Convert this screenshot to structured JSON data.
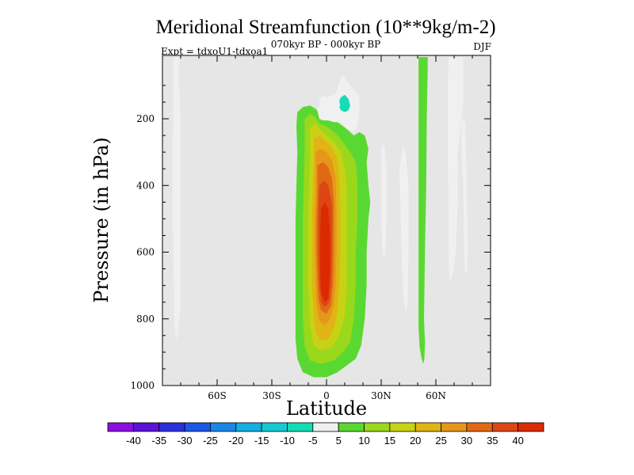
{
  "chart_data": {
    "type": "filled-contour",
    "title": "Meridional Streamfunction (10**9kg/m-2)",
    "subtitle": "070kyr BP - 000kyr BP",
    "left_label": "Expt = tdxoU1-tdxoa1",
    "right_label": "DJF",
    "xlabel": "Latitude",
    "ylabel": "Pressure (in hPa)",
    "xlim": [
      -90,
      90
    ],
    "ylim": [
      1000,
      10
    ],
    "x_ticks": [
      {
        "value": -60,
        "label": "60S"
      },
      {
        "value": -30,
        "label": "30S"
      },
      {
        "value": 0,
        "label": "0"
      },
      {
        "value": 30,
        "label": "30N"
      },
      {
        "value": 60,
        "label": "60N"
      }
    ],
    "y_ticks": [
      {
        "value": 200,
        "label": "200"
      },
      {
        "value": 400,
        "label": "400"
      },
      {
        "value": 600,
        "label": "600"
      },
      {
        "value": 800,
        "label": "800"
      },
      {
        "value": 1000,
        "label": "1000"
      }
    ],
    "background_color": "#e6e6e6",
    "colorbar": {
      "labels": [
        "-40",
        "-35",
        "-30",
        "-25",
        "-20",
        "-15",
        "-10",
        "-5",
        "5",
        "10",
        "15",
        "20",
        "25",
        "30",
        "35",
        "40"
      ],
      "colors": [
        "#8a10e0",
        "#5a14d8",
        "#2c30d8",
        "#1a58e6",
        "#1a86e6",
        "#14aee0",
        "#14cad2",
        "#14dcb4",
        "#f0f0f0",
        "#5ad832",
        "#9ad81c",
        "#c8d214",
        "#e0b414",
        "#e6961a",
        "#e06a14",
        "#dc4614",
        "#dc2a00"
      ]
    },
    "regions": [
      {
        "name": "sh-polar-cell",
        "level": -5,
        "points": [
          [
            -84,
            15
          ],
          [
            -81,
            15
          ],
          [
            -81,
            85
          ],
          [
            -80,
            200
          ],
          [
            -80,
            400
          ],
          [
            -80,
            600
          ],
          [
            -80,
            700
          ],
          [
            -80,
            760
          ],
          [
            -81,
            810
          ],
          [
            -81.5,
            850
          ],
          [
            -82.5,
            860
          ],
          [
            -83.5,
            820
          ],
          [
            -83.8,
            700
          ],
          [
            -84,
            600
          ],
          [
            -84.5,
            500
          ],
          [
            -84.5,
            300
          ],
          [
            -84,
            150
          ]
        ]
      },
      {
        "name": "tropical-cell-lv1",
        "level": 5,
        "points": [
          [
            -16,
            180
          ],
          [
            -13,
            165
          ],
          [
            -9,
            160
          ],
          [
            -6,
            170
          ],
          [
            -3,
            190
          ],
          [
            0,
            180
          ],
          [
            5,
            175
          ],
          [
            7,
            200
          ],
          [
            6,
            210
          ],
          [
            11,
            230
          ],
          [
            15,
            250
          ],
          [
            18,
            240
          ],
          [
            21,
            250
          ],
          [
            23,
            290
          ],
          [
            22,
            330
          ],
          [
            23,
            400
          ],
          [
            24,
            450
          ],
          [
            23,
            500
          ],
          [
            22,
            600
          ],
          [
            22,
            700
          ],
          [
            21,
            800
          ],
          [
            19,
            880
          ],
          [
            16,
            920
          ],
          [
            11,
            940
          ],
          [
            6,
            960
          ],
          [
            0,
            975
          ],
          [
            -7,
            975
          ],
          [
            -13,
            960
          ],
          [
            -16,
            920
          ],
          [
            -17,
            860
          ],
          [
            -17,
            750
          ],
          [
            -17,
            600
          ],
          [
            -17,
            500
          ],
          [
            -16.5,
            400
          ],
          [
            -16,
            300
          ],
          [
            -16.5,
            220
          ]
        ]
      },
      {
        "name": "tropical-cell-lv2",
        "level": 10,
        "points": [
          [
            -12,
            200
          ],
          [
            -9,
            185
          ],
          [
            -6,
            195
          ],
          [
            -4,
            215
          ],
          [
            -1,
            220
          ],
          [
            3,
            235
          ],
          [
            7,
            255
          ],
          [
            11,
            285
          ],
          [
            13,
            300
          ],
          [
            16,
            330
          ],
          [
            17,
            400
          ],
          [
            17,
            500
          ],
          [
            16,
            600
          ],
          [
            16,
            700
          ],
          [
            15,
            800
          ],
          [
            13,
            870
          ],
          [
            9,
            900
          ],
          [
            4,
            925
          ],
          [
            -3,
            935
          ],
          [
            -9,
            925
          ],
          [
            -12,
            880
          ],
          [
            -13,
            800
          ],
          [
            -13,
            700
          ],
          [
            -13,
            600
          ],
          [
            -13,
            500
          ],
          [
            -12.5,
            400
          ],
          [
            -12,
            300
          ],
          [
            -12,
            250
          ]
        ]
      },
      {
        "name": "tropical-cell-lv3",
        "level": 15,
        "points": [
          [
            -9,
            225
          ],
          [
            -6,
            215
          ],
          [
            -3,
            235
          ],
          [
            0,
            250
          ],
          [
            4,
            270
          ],
          [
            8,
            300
          ],
          [
            10,
            350
          ],
          [
            11,
            400
          ],
          [
            11,
            500
          ],
          [
            11,
            600
          ],
          [
            11,
            700
          ],
          [
            10,
            790
          ],
          [
            7,
            850
          ],
          [
            3,
            885
          ],
          [
            -3,
            895
          ],
          [
            -7,
            880
          ],
          [
            -9,
            820
          ],
          [
            -10,
            700
          ],
          [
            -10,
            600
          ],
          [
            -10,
            500
          ],
          [
            -9.5,
            400
          ],
          [
            -9,
            300
          ]
        ]
      },
      {
        "name": "tropical-cell-lv4",
        "level": 20,
        "points": [
          [
            -7,
            260
          ],
          [
            -4,
            250
          ],
          [
            -1,
            265
          ],
          [
            3,
            285
          ],
          [
            6,
            320
          ],
          [
            7,
            380
          ],
          [
            7.5,
            480
          ],
          [
            7.5,
            600
          ],
          [
            7,
            700
          ],
          [
            6,
            780
          ],
          [
            4,
            830
          ],
          [
            1,
            860
          ],
          [
            -3,
            865
          ],
          [
            -6,
            840
          ],
          [
            -7,
            780
          ],
          [
            -8,
            700
          ],
          [
            -8,
            600
          ],
          [
            -8,
            500
          ],
          [
            -7.5,
            400
          ],
          [
            -7,
            320
          ]
        ]
      },
      {
        "name": "tropical-cell-lv5",
        "level": 25,
        "points": [
          [
            -6,
            300
          ],
          [
            -3,
            290
          ],
          [
            0,
            300
          ],
          [
            3,
            325
          ],
          [
            5,
            380
          ],
          [
            5.5,
            470
          ],
          [
            5.5,
            600
          ],
          [
            5,
            700
          ],
          [
            4,
            760
          ],
          [
            2,
            800
          ],
          [
            -1,
            820
          ],
          [
            -4,
            805
          ],
          [
            -5.5,
            760
          ],
          [
            -6,
            700
          ],
          [
            -6.5,
            600
          ],
          [
            -6.5,
            500
          ],
          [
            -6,
            400
          ],
          [
            -6,
            350
          ]
        ]
      },
      {
        "name": "tropical-cell-lv6",
        "level": 30,
        "points": [
          [
            -5,
            340
          ],
          [
            -2,
            330
          ],
          [
            1,
            345
          ],
          [
            3,
            380
          ],
          [
            4,
            450
          ],
          [
            4,
            600
          ],
          [
            3.5,
            700
          ],
          [
            2.5,
            760
          ],
          [
            0,
            785
          ],
          [
            -3,
            775
          ],
          [
            -4.5,
            740
          ],
          [
            -5,
            680
          ],
          [
            -5.5,
            600
          ],
          [
            -5.5,
            500
          ],
          [
            -5,
            420
          ]
        ]
      },
      {
        "name": "tropical-cell-lv7",
        "level": 35,
        "points": [
          [
            -4,
            400
          ],
          [
            -1,
            385
          ],
          [
            1,
            400
          ],
          [
            3,
            460
          ],
          [
            3,
            600
          ],
          [
            2.5,
            700
          ],
          [
            1.5,
            750
          ],
          [
            -1,
            765
          ],
          [
            -3,
            750
          ],
          [
            -4,
            700
          ],
          [
            -4.5,
            600
          ],
          [
            -4.5,
            500
          ]
        ]
      },
      {
        "name": "tropical-cell-lv8",
        "level": 40,
        "points": [
          [
            -3,
            470
          ],
          [
            -1,
            450
          ],
          [
            1,
            470
          ],
          [
            2,
            550
          ],
          [
            2,
            650
          ],
          [
            1,
            740
          ],
          [
            -1,
            750
          ],
          [
            -3,
            720
          ],
          [
            -3.5,
            650
          ],
          [
            -3.5,
            550
          ]
        ]
      },
      {
        "name": "upper-neg-cell-lv1",
        "level": -5,
        "points": [
          [
            -5,
            175
          ],
          [
            -4,
            160
          ],
          [
            -4,
            145
          ],
          [
            -2,
            130
          ],
          [
            0,
            135
          ],
          [
            3,
            130
          ],
          [
            5,
            125
          ],
          [
            8,
            75
          ],
          [
            9,
            70
          ],
          [
            10,
            75
          ],
          [
            13,
            100
          ],
          [
            17,
            125
          ],
          [
            18,
            140
          ],
          [
            18,
            180
          ],
          [
            17,
            220
          ],
          [
            15,
            240
          ],
          [
            11,
            230
          ],
          [
            9,
            215
          ],
          [
            7,
            210
          ],
          [
            4,
            210
          ],
          [
            1,
            205
          ],
          [
            -2,
            205
          ],
          [
            -4,
            200
          ]
        ]
      },
      {
        "name": "upper-neg-cell-lv2",
        "level": -10,
        "points": [
          [
            7,
            165
          ],
          [
            7.5,
            160
          ],
          [
            7,
            145
          ],
          [
            8,
            135
          ],
          [
            10,
            128
          ],
          [
            12,
            140
          ],
          [
            13,
            160
          ],
          [
            12,
            175
          ],
          [
            10,
            180
          ],
          [
            8,
            175
          ]
        ]
      },
      {
        "name": "nh-cell-a",
        "level": -5,
        "points": [
          [
            30,
            300
          ],
          [
            31,
            270
          ],
          [
            32,
            290
          ],
          [
            33,
            350
          ],
          [
            33,
            450
          ],
          [
            32.5,
            580
          ],
          [
            31.5,
            620
          ],
          [
            30.5,
            580
          ],
          [
            30,
            450
          ],
          [
            30,
            400
          ]
        ]
      },
      {
        "name": "nh-cell-b",
        "level": -5,
        "points": [
          [
            40,
            350
          ],
          [
            42,
            280
          ],
          [
            43.5,
            300
          ],
          [
            45,
            400
          ],
          [
            45,
            600
          ],
          [
            44.5,
            750
          ],
          [
            43.5,
            780
          ],
          [
            42.5,
            750
          ],
          [
            41.5,
            650
          ],
          [
            41,
            550
          ],
          [
            40.5,
            450
          ]
        ]
      },
      {
        "name": "nh-positive-column",
        "level": 5,
        "points": [
          [
            50.5,
            15
          ],
          [
            55.5,
            15
          ],
          [
            55.5,
            50
          ],
          [
            55,
            200
          ],
          [
            54.7,
            400
          ],
          [
            54,
            600
          ],
          [
            53.5,
            800
          ],
          [
            54,
            870
          ],
          [
            53.7,
            920
          ],
          [
            53,
            935
          ],
          [
            52,
            915
          ],
          [
            51,
            880
          ],
          [
            50.5,
            820
          ],
          [
            50.5,
            600
          ],
          [
            50.5,
            400
          ],
          [
            50.5,
            200
          ],
          [
            50.5,
            50
          ]
        ]
      },
      {
        "name": "nh-polar-column-a",
        "level": -5,
        "points": [
          [
            67,
            15
          ],
          [
            75,
            15
          ],
          [
            75,
            150
          ],
          [
            74,
            200
          ],
          [
            72,
            300
          ],
          [
            72,
            450
          ],
          [
            71,
            600
          ],
          [
            70,
            650
          ],
          [
            68.5,
            680
          ],
          [
            67.5,
            690
          ],
          [
            67,
            650
          ],
          [
            67,
            500
          ],
          [
            66.5,
            300
          ],
          [
            66.5,
            100
          ]
        ]
      },
      {
        "name": "nh-polar-column-b",
        "level": -5,
        "points": [
          [
            74,
            200
          ],
          [
            76,
            210
          ],
          [
            77,
            400
          ],
          [
            77.5,
            600
          ],
          [
            77,
            660
          ],
          [
            76,
            665
          ],
          [
            75.5,
            600
          ],
          [
            75,
            400
          ],
          [
            74,
            300
          ]
        ]
      }
    ]
  }
}
